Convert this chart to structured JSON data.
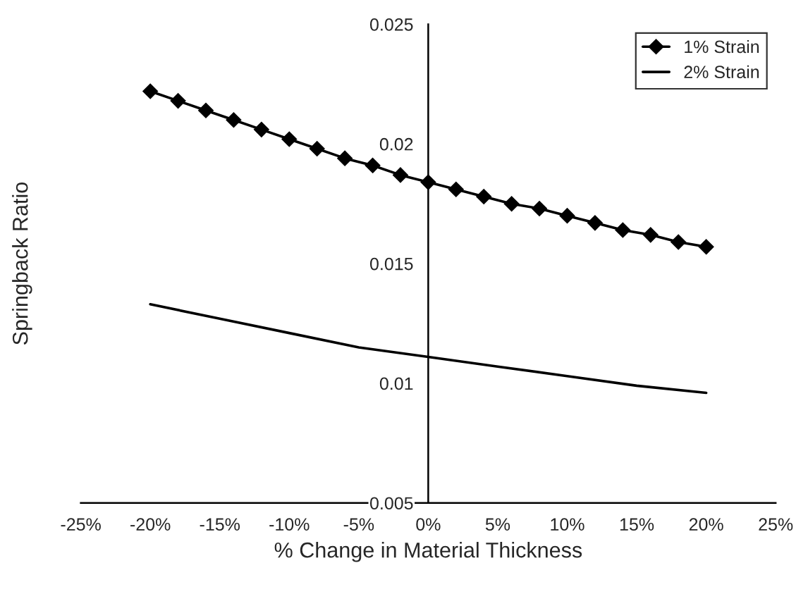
{
  "chart_data": {
    "type": "line",
    "xlabel": "% Change in Material Thickness",
    "ylabel": "Springback Ratio",
    "series": [
      {
        "name": "1% Strain",
        "color": "#000000",
        "marker": "diamond",
        "x": [
          -20,
          -18,
          -16,
          -14,
          -12,
          -10,
          -8,
          -6,
          -4,
          -2,
          0,
          2,
          4,
          6,
          8,
          10,
          12,
          14,
          16,
          18,
          20
        ],
        "values": [
          0.0222,
          0.0218,
          0.0214,
          0.021,
          0.0206,
          0.0202,
          0.0198,
          0.0194,
          0.0191,
          0.0187,
          0.0184,
          0.0181,
          0.0178,
          0.0175,
          0.0173,
          0.017,
          0.0167,
          0.0164,
          0.0162,
          0.0159,
          0.0157
        ]
      },
      {
        "name": "2% Strain",
        "color": "#000000",
        "marker": "none",
        "x": [
          -20,
          -15,
          -10,
          -5,
          0,
          5,
          10,
          15,
          20
        ],
        "values": [
          0.0133,
          0.0127,
          0.0121,
          0.0115,
          0.0111,
          0.0107,
          0.0103,
          0.0099,
          0.0096
        ]
      }
    ],
    "xlim": [
      -25,
      25
    ],
    "xticks": [
      {
        "value": -25,
        "label": "-25%"
      },
      {
        "value": -20,
        "label": "-20%"
      },
      {
        "value": -15,
        "label": "-15%"
      },
      {
        "value": -10,
        "label": "-10%"
      },
      {
        "value": -5,
        "label": "-5%"
      },
      {
        "value": 0,
        "label": "0%"
      },
      {
        "value": 5,
        "label": "5%"
      },
      {
        "value": 10,
        "label": "10%"
      },
      {
        "value": 15,
        "label": "15%"
      },
      {
        "value": 20,
        "label": "20%"
      },
      {
        "value": 25,
        "label": "25%"
      }
    ],
    "ylim": [
      0.005,
      0.025
    ],
    "yticks": [
      0.005,
      0.01,
      0.015,
      0.02,
      0.025
    ],
    "grid": false,
    "legend": "top right",
    "line_style": "solid"
  }
}
